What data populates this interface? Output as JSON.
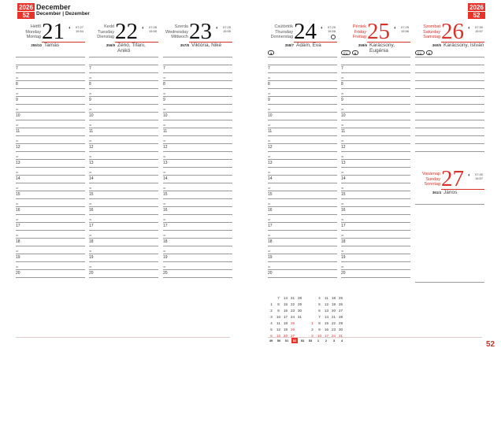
{
  "header": {
    "year": "2026",
    "week": "52",
    "month": "December",
    "month_translations": "December | Dezember"
  },
  "days_left": [
    {
      "names": [
        "Hétfő",
        "Monday",
        "Montag"
      ],
      "num": "21",
      "sunrise": "07:27",
      "sunset": "15:54",
      "doy": "355/10",
      "nameday": "Tamás"
    },
    {
      "names": [
        "Kedd",
        "Tuesday",
        "Dienstag"
      ],
      "num": "22",
      "sunrise": "07:28",
      "sunset": "15:55",
      "doy": "356/9",
      "nameday": "Zénó, Tifani, Anikó"
    },
    {
      "names": [
        "Szerda",
        "Wednesday",
        "Mittwoch"
      ],
      "num": "23",
      "sunrise": "07:29",
      "sunset": "15:55",
      "doy": "357/8",
      "nameday": "Viktória, Niké"
    }
  ],
  "days_right": [
    {
      "names": [
        "Csütörtök",
        "Thursday",
        "Donnerstag"
      ],
      "num": "24",
      "sunrise": "07:29",
      "sunset": "15:56",
      "doy": "358/7",
      "nameday": "Ádám, Éva",
      "symbols": [
        "●"
      ],
      "holiday": false
    },
    {
      "names": [
        "Péntek",
        "Friday",
        "Freitag"
      ],
      "num": "25",
      "sunrise": "07:29",
      "sunset": "15:56",
      "doy": "359/6",
      "nameday": "Karácsony, Eugénia",
      "symbols": [
        "EU",
        "●"
      ],
      "holiday": true
    },
    {
      "names": [
        "Szombat",
        "Saturday",
        "Samstag"
      ],
      "num": "26",
      "sunrise": "07:30",
      "sunset": "15:57",
      "doy": "360/5",
      "nameday": "Karácsony, István",
      "symbols": [
        "EU",
        "●"
      ],
      "holiday": true
    }
  ],
  "sunday": {
    "names": [
      "Vasárnap",
      "Sunday",
      "Sonntag"
    ],
    "num": "27",
    "sunrise": "07:30",
    "sunset": "15:57",
    "doy": "361/4",
    "nameday": "János"
  },
  "hours": [
    "7",
    "8",
    "9",
    "10",
    "11",
    "12",
    "13",
    "14",
    "15",
    "16",
    "17",
    "18",
    "19",
    "20"
  ],
  "half_label": "30",
  "mini_calendar": {
    "december": [
      [
        "",
        "7",
        "14",
        "21",
        "28"
      ],
      [
        "1",
        "8",
        "15",
        "22",
        "29"
      ],
      [
        "2",
        "9",
        "16",
        "23",
        "30"
      ],
      [
        "3",
        "10",
        "17",
        "24",
        "31"
      ],
      [
        "4",
        "11",
        "18",
        "25",
        ""
      ],
      [
        "5",
        "12",
        "19",
        "26",
        ""
      ],
      [
        "6",
        "13",
        "20",
        "27",
        ""
      ]
    ],
    "january": [
      [
        "",
        "4",
        "11",
        "18",
        "25"
      ],
      [
        "",
        "5",
        "12",
        "19",
        "26"
      ],
      [
        "",
        "6",
        "13",
        "20",
        "27"
      ],
      [
        "",
        "7",
        "14",
        "21",
        "28"
      ],
      [
        "1",
        "8",
        "15",
        "22",
        "29"
      ],
      [
        "2",
        "9",
        "16",
        "23",
        "30"
      ],
      [
        "3",
        "10",
        "17",
        "24",
        "31"
      ]
    ],
    "week_numbers": [
      "49",
      "50",
      "51",
      "52",
      "53",
      "53",
      "1",
      "2",
      "3",
      "4"
    ],
    "current_week": "52"
  },
  "page_number": "52",
  "colors": {
    "accent": "#e8332a",
    "holiday": "#d7312a"
  }
}
